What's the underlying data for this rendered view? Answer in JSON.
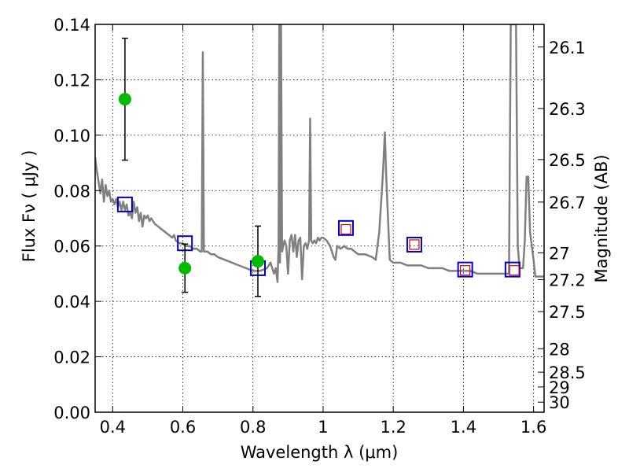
{
  "chart_data": {
    "type": "scatter",
    "title": "",
    "xlabel": "Wavelength  λ (μm)",
    "ylabel": "Flux  Fν  ( μJy )",
    "ylabel_right": "Magnitude (AB)",
    "xlim": [
      0.35,
      1.63
    ],
    "ylim": [
      0,
      0.14
    ],
    "grid": true,
    "x_ticks": [
      0.4,
      0.6,
      0.8,
      1.0,
      1.2,
      1.4,
      1.6
    ],
    "x_tick_labels": [
      "0.4",
      "0.6",
      "0.8",
      "1",
      "1.2",
      "1.4",
      "1.6"
    ],
    "y_ticks": [
      0.0,
      0.02,
      0.04,
      0.06,
      0.08,
      0.1,
      0.12,
      0.14
    ],
    "y_tick_labels": [
      "0.00",
      "0.02",
      "0.04",
      "0.06",
      "0.08",
      "0.10",
      "0.12",
      "0.14"
    ],
    "right_ticks": [
      {
        "mag": 26.1,
        "label": "26.1"
      },
      {
        "mag": 26.3,
        "label": "26.3"
      },
      {
        "mag": 26.5,
        "label": "26.5"
      },
      {
        "mag": 26.7,
        "label": "26.7"
      },
      {
        "mag": 27.0,
        "label": "27"
      },
      {
        "mag": 27.2,
        "label": "27.2"
      },
      {
        "mag": 27.5,
        "label": "27.5"
      },
      {
        "mag": 28.0,
        "label": "28"
      },
      {
        "mag": 28.5,
        "label": "28.5"
      },
      {
        "mag": 29.0,
        "label": "29"
      },
      {
        "mag": 30.0,
        "label": "30"
      }
    ],
    "observed_points": {
      "color": "#00bb00",
      "errorbar_color": "#000000",
      "points": [
        {
          "x": 0.435,
          "y": 0.113,
          "err": 0.022
        },
        {
          "x": 0.606,
          "y": 0.052,
          "err": 0.0087
        },
        {
          "x": 0.814,
          "y": 0.0545,
          "err": 0.0127
        }
      ]
    },
    "model_photometry": {
      "color": "#0000cc",
      "points": [
        {
          "x": 0.435,
          "y": 0.075
        },
        {
          "x": 0.606,
          "y": 0.061
        },
        {
          "x": 0.814,
          "y": 0.052
        },
        {
          "x": 1.065,
          "y": 0.0665
        },
        {
          "x": 1.26,
          "y": 0.0605
        },
        {
          "x": 1.405,
          "y": 0.0515
        },
        {
          "x": 1.54,
          "y": 0.0515
        }
      ]
    },
    "model_photometry_ir": {
      "color": "#dd0000",
      "points": [
        {
          "x": 1.065,
          "y": 0.066
        },
        {
          "x": 1.26,
          "y": 0.0605
        },
        {
          "x": 1.405,
          "y": 0.0512
        },
        {
          "x": 1.545,
          "y": 0.0512
        }
      ]
    },
    "spectrum": {
      "color": "#808080",
      "points": [
        [
          0.35,
          0.092
        ],
        [
          0.355,
          0.087
        ],
        [
          0.36,
          0.083
        ],
        [
          0.365,
          0.079
        ],
        [
          0.37,
          0.084
        ],
        [
          0.375,
          0.076
        ],
        [
          0.38,
          0.082
        ],
        [
          0.385,
          0.078
        ],
        [
          0.39,
          0.08
        ],
        [
          0.395,
          0.076
        ],
        [
          0.4,
          0.077
        ],
        [
          0.405,
          0.075
        ],
        [
          0.41,
          0.077
        ],
        [
          0.415,
          0.074
        ],
        [
          0.42,
          0.076
        ],
        [
          0.425,
          0.073
        ],
        [
          0.43,
          0.076
        ],
        [
          0.435,
          0.073
        ],
        [
          0.44,
          0.075
        ],
        [
          0.445,
          0.071
        ],
        [
          0.45,
          0.072
        ],
        [
          0.455,
          0.07
        ],
        [
          0.46,
          0.076
        ],
        [
          0.465,
          0.072
        ],
        [
          0.47,
          0.074
        ],
        [
          0.475,
          0.069
        ],
        [
          0.48,
          0.072
        ],
        [
          0.485,
          0.067
        ],
        [
          0.49,
          0.071
        ],
        [
          0.495,
          0.07
        ],
        [
          0.5,
          0.071
        ],
        [
          0.505,
          0.069
        ],
        [
          0.51,
          0.07
        ],
        [
          0.52,
          0.068
        ],
        [
          0.53,
          0.067
        ],
        [
          0.54,
          0.066
        ],
        [
          0.55,
          0.065
        ],
        [
          0.56,
          0.064
        ],
        [
          0.57,
          0.063
        ],
        [
          0.575,
          0.064
        ],
        [
          0.58,
          0.062
        ],
        [
          0.59,
          0.061
        ],
        [
          0.6,
          0.061
        ],
        [
          0.61,
          0.06
        ],
        [
          0.62,
          0.06
        ],
        [
          0.63,
          0.059
        ],
        [
          0.64,
          0.059
        ],
        [
          0.65,
          0.058
        ],
        [
          0.654,
          0.058
        ],
        [
          0.657,
          0.13
        ],
        [
          0.66,
          0.058
        ],
        [
          0.67,
          0.058
        ],
        [
          0.68,
          0.057
        ],
        [
          0.69,
          0.057
        ],
        [
          0.7,
          0.056
        ],
        [
          0.72,
          0.055
        ],
        [
          0.74,
          0.054
        ],
        [
          0.76,
          0.053
        ],
        [
          0.78,
          0.052
        ],
        [
          0.8,
          0.051
        ],
        [
          0.82,
          0.051
        ],
        [
          0.84,
          0.052
        ],
        [
          0.85,
          0.054
        ],
        [
          0.86,
          0.05
        ],
        [
          0.865,
          0.052
        ],
        [
          0.87,
          0.047
        ],
        [
          0.873,
          0.06
        ],
        [
          0.875,
          0.145
        ],
        [
          0.877,
          0.054
        ],
        [
          0.88,
          0.145
        ],
        [
          0.883,
          0.058
        ],
        [
          0.89,
          0.062
        ],
        [
          0.895,
          0.06
        ],
        [
          0.9,
          0.05
        ],
        [
          0.905,
          0.062
        ],
        [
          0.91,
          0.064
        ],
        [
          0.915,
          0.058
        ],
        [
          0.92,
          0.064
        ],
        [
          0.925,
          0.056
        ],
        [
          0.93,
          0.062
        ],
        [
          0.935,
          0.063
        ],
        [
          0.94,
          0.048
        ],
        [
          0.945,
          0.06
        ],
        [
          0.95,
          0.061
        ],
        [
          0.955,
          0.059
        ],
        [
          0.96,
          0.062
        ],
        [
          0.963,
          0.106
        ],
        [
          0.966,
          0.062
        ],
        [
          0.97,
          0.061
        ],
        [
          0.975,
          0.062
        ],
        [
          0.98,
          0.061
        ],
        [
          0.985,
          0.063
        ],
        [
          0.99,
          0.062
        ],
        [
          0.995,
          0.063
        ],
        [
          1.0,
          0.063
        ],
        [
          1.01,
          0.062
        ],
        [
          1.02,
          0.06
        ],
        [
          1.03,
          0.056
        ],
        [
          1.035,
          0.055
        ],
        [
          1.04,
          0.06
        ],
        [
          1.05,
          0.059
        ],
        [
          1.06,
          0.06
        ],
        [
          1.07,
          0.059
        ],
        [
          1.08,
          0.059
        ],
        [
          1.09,
          0.058
        ],
        [
          1.1,
          0.057
        ],
        [
          1.12,
          0.057
        ],
        [
          1.14,
          0.056
        ],
        [
          1.15,
          0.055
        ],
        [
          1.16,
          0.065
        ],
        [
          1.17,
          0.085
        ],
        [
          1.176,
          0.101
        ],
        [
          1.18,
          0.085
        ],
        [
          1.19,
          0.055
        ],
        [
          1.2,
          0.054
        ],
        [
          1.22,
          0.054
        ],
        [
          1.24,
          0.053
        ],
        [
          1.26,
          0.053
        ],
        [
          1.28,
          0.053
        ],
        [
          1.3,
          0.052
        ],
        [
          1.32,
          0.052
        ],
        [
          1.34,
          0.052
        ],
        [
          1.36,
          0.051
        ],
        [
          1.38,
          0.051
        ],
        [
          1.4,
          0.051
        ],
        [
          1.42,
          0.051
        ],
        [
          1.44,
          0.05
        ],
        [
          1.46,
          0.05
        ],
        [
          1.48,
          0.05
        ],
        [
          1.5,
          0.05
        ],
        [
          1.52,
          0.05
        ],
        [
          1.53,
          0.05
        ],
        [
          1.535,
          0.145
        ],
        [
          1.55,
          0.145
        ],
        [
          1.555,
          0.06
        ],
        [
          1.56,
          0.052
        ],
        [
          1.57,
          0.052
        ],
        [
          1.575,
          0.062
        ],
        [
          1.58,
          0.085
        ],
        [
          1.585,
          0.085
        ],
        [
          1.59,
          0.065
        ],
        [
          1.6,
          0.055
        ],
        [
          1.605,
          0.049
        ],
        [
          1.63,
          0.049
        ]
      ]
    }
  }
}
